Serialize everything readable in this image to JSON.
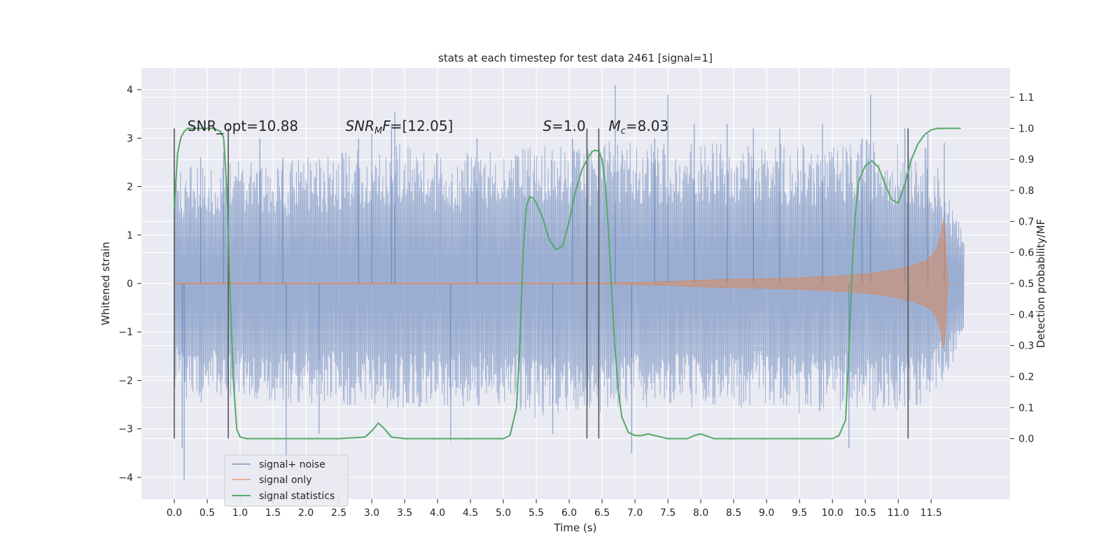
{
  "chart_data": {
    "type": "line",
    "title": "stats at each timestep for test data 2461 [signal=1]",
    "xlabel": "Time (s)",
    "ylabel": "Whitened strain",
    "y2label": "Detection probability/MF",
    "xlim": [
      -0.5,
      12.7
    ],
    "ylim": [
      -4.45,
      4.45
    ],
    "y2lim": [
      -0.195,
      1.195
    ],
    "x_ticks": [
      0.0,
      0.5,
      1.0,
      1.5,
      2.0,
      2.5,
      3.0,
      3.5,
      4.0,
      4.5,
      5.0,
      5.5,
      6.0,
      6.5,
      7.0,
      7.5,
      8.0,
      8.5,
      9.0,
      9.5,
      10.0,
      10.5,
      11.0,
      11.5
    ],
    "x_tick_labels": [
      "0.0",
      "0.5",
      "1.0",
      "1.5",
      "2.0",
      "2.5",
      "3.0",
      "3.5",
      "4.0",
      "4.5",
      "5.0",
      "5.5",
      "6.0",
      "6.5",
      "7.0",
      "7.5",
      "8.0",
      "8.5",
      "9.0",
      "9.5",
      "10.0",
      "10.5",
      "11.0",
      "11.5"
    ],
    "y_ticks": [
      -4,
      -3,
      -2,
      -1,
      0,
      1,
      2,
      3,
      4
    ],
    "y_tick_labels": [
      "−4",
      "−3",
      "−2",
      "−1",
      "0",
      "1",
      "2",
      "3",
      "4"
    ],
    "y2_ticks": [
      0.0,
      0.1,
      0.2,
      0.3,
      0.4,
      0.5,
      0.6,
      0.7,
      0.8,
      0.9,
      1.0,
      1.1
    ],
    "y2_tick_labels": [
      "0.0",
      "0.1",
      "0.2",
      "0.3",
      "0.4",
      "0.5",
      "0.6",
      "0.7",
      "0.8",
      "0.9",
      "1.0",
      "1.1"
    ],
    "grid": true,
    "legend_position": "lower-left",
    "colors": {
      "noise": "#4c72b0",
      "signal": "#dd8452",
      "stats": "#55a868",
      "vlines": "#555555",
      "background": "#eaeaf2",
      "grid": "#ffffff"
    },
    "series": [
      {
        "name": "signal+ noise",
        "axis": "left",
        "note_visual": "dense noise trace between roughly -2 and 2.5 with spikes to about ±4",
        "x_range": [
          0.0,
          12.0
        ],
        "envelope": [
          [
            0.0,
            -2.3,
            2.4
          ],
          [
            0.5,
            -2.5,
            2.5
          ],
          [
            1.0,
            -2.4,
            2.6
          ],
          [
            1.5,
            -2.5,
            2.5
          ],
          [
            2.0,
            -2.5,
            2.6
          ],
          [
            2.5,
            -2.5,
            2.7
          ],
          [
            3.0,
            -2.6,
            2.8
          ],
          [
            3.5,
            -2.6,
            2.9
          ],
          [
            4.0,
            -2.5,
            2.7
          ],
          [
            4.5,
            -2.6,
            2.7
          ],
          [
            5.0,
            -2.5,
            2.8
          ],
          [
            5.5,
            -2.8,
            2.9
          ],
          [
            6.0,
            -2.7,
            2.8
          ],
          [
            6.5,
            -2.7,
            3.0
          ],
          [
            7.0,
            -2.6,
            2.9
          ],
          [
            7.5,
            -2.6,
            3.0
          ],
          [
            8.0,
            -2.6,
            2.9
          ],
          [
            8.5,
            -2.6,
            2.9
          ],
          [
            9.0,
            -2.5,
            2.9
          ],
          [
            9.5,
            -2.7,
            2.9
          ],
          [
            10.0,
            -2.6,
            2.8
          ],
          [
            10.5,
            -2.7,
            3.0
          ],
          [
            11.0,
            -2.6,
            2.9
          ],
          [
            11.5,
            -2.5,
            2.8
          ],
          [
            12.0,
            -1.2,
            1.0
          ]
        ],
        "spikes": [
          [
            0.15,
            -4.05
          ],
          [
            0.12,
            -3.4
          ],
          [
            0.4,
            2.6
          ],
          [
            0.75,
            2.7
          ],
          [
            1.3,
            3.0
          ],
          [
            1.7,
            -3.6
          ],
          [
            1.65,
            2.6
          ],
          [
            2.2,
            -3.1
          ],
          [
            2.8,
            3.0
          ],
          [
            3.0,
            3.1
          ],
          [
            3.3,
            3.3
          ],
          [
            3.35,
            3.55
          ],
          [
            4.2,
            -3.25
          ],
          [
            4.6,
            3.0
          ],
          [
            5.75,
            -3.1
          ],
          [
            6.05,
            3.0
          ],
          [
            6.7,
            4.1
          ],
          [
            6.95,
            -3.5
          ],
          [
            7.3,
            3.0
          ],
          [
            7.5,
            3.9
          ],
          [
            7.9,
            3.3
          ],
          [
            8.4,
            3.3
          ],
          [
            8.8,
            3.2
          ],
          [
            9.2,
            3.2
          ],
          [
            9.85,
            3.3
          ],
          [
            10.25,
            -3.4
          ],
          [
            10.45,
            3.0
          ],
          [
            10.58,
            3.9
          ],
          [
            11.1,
            3.2
          ],
          [
            11.45,
            3.1
          ],
          [
            11.7,
            2.9
          ]
        ]
      },
      {
        "name": "signal only",
        "axis": "left",
        "note_visual": "chirp that grows in amplitude and then stops",
        "x": [
          0.0,
          6.5,
          7.5,
          8.0,
          8.5,
          9.0,
          9.5,
          10.0,
          10.5,
          10.8,
          11.0,
          11.2,
          11.4,
          11.5,
          11.6,
          11.65,
          11.7,
          11.75,
          12.0
        ],
        "amplitude": [
          0.01,
          0.01,
          0.04,
          0.07,
          0.09,
          0.1,
          0.12,
          0.15,
          0.2,
          0.25,
          0.3,
          0.36,
          0.46,
          0.55,
          0.75,
          1.0,
          1.45,
          0.0,
          0.0
        ]
      },
      {
        "name": "signal statistics",
        "axis": "right",
        "x": [
          0.0,
          0.05,
          0.1,
          0.15,
          0.2,
          0.3,
          0.4,
          0.5,
          0.6,
          0.7,
          0.75,
          0.8,
          0.85,
          0.9,
          0.95,
          1.0,
          1.1,
          1.5,
          2.0,
          2.5,
          2.9,
          3.0,
          3.1,
          3.2,
          3.3,
          3.5,
          4.0,
          4.5,
          5.0,
          5.1,
          5.2,
          5.25,
          5.3,
          5.35,
          5.4,
          5.45,
          5.5,
          5.6,
          5.7,
          5.8,
          5.9,
          6.0,
          6.1,
          6.2,
          6.3,
          6.35,
          6.4,
          6.45,
          6.5,
          6.55,
          6.6,
          6.65,
          6.7,
          6.75,
          6.8,
          6.9,
          7.0,
          7.1,
          7.2,
          7.3,
          7.5,
          7.8,
          7.9,
          8.0,
          8.2,
          8.5,
          9.0,
          9.5,
          10.0,
          10.1,
          10.2,
          10.25,
          10.3,
          10.35,
          10.4,
          10.5,
          10.6,
          10.7,
          10.8,
          10.9,
          11.0,
          11.1,
          11.2,
          11.3,
          11.4,
          11.5,
          11.6,
          11.8,
          11.95
        ],
        "values": [
          0.74,
          0.92,
          0.97,
          0.99,
          1.0,
          1.0,
          1.0,
          1.0,
          1.0,
          0.99,
          0.97,
          0.8,
          0.45,
          0.18,
          0.03,
          0.005,
          0.0,
          0.0,
          0.0,
          0.0,
          0.005,
          0.025,
          0.05,
          0.03,
          0.005,
          0.0,
          0.0,
          0.0,
          0.0,
          0.01,
          0.1,
          0.3,
          0.6,
          0.75,
          0.78,
          0.775,
          0.76,
          0.71,
          0.64,
          0.61,
          0.62,
          0.7,
          0.8,
          0.87,
          0.91,
          0.925,
          0.93,
          0.925,
          0.9,
          0.82,
          0.66,
          0.46,
          0.28,
          0.15,
          0.07,
          0.02,
          0.01,
          0.01,
          0.015,
          0.01,
          0.0,
          0.0,
          0.01,
          0.015,
          0.0,
          0.0,
          0.0,
          0.0,
          0.0,
          0.01,
          0.06,
          0.28,
          0.55,
          0.73,
          0.83,
          0.88,
          0.895,
          0.875,
          0.82,
          0.77,
          0.76,
          0.82,
          0.9,
          0.95,
          0.98,
          0.995,
          1.0,
          1.0,
          1.0
        ]
      }
    ],
    "vlines": [
      0.0,
      0.82,
      6.27,
      6.45,
      11.15
    ],
    "vline_range": [
      -3.2,
      3.2
    ],
    "annotations": [
      {
        "text": "SNR_opt=10.88",
        "x": 0.2
      },
      {
        "text": "SNR_MF=[12.05]",
        "x": 2.6
      },
      {
        "text": "S=1.0",
        "x": 5.6
      },
      {
        "text": "M_c=8.03",
        "x": 6.6
      }
    ],
    "annotation_y": 3.15
  }
}
